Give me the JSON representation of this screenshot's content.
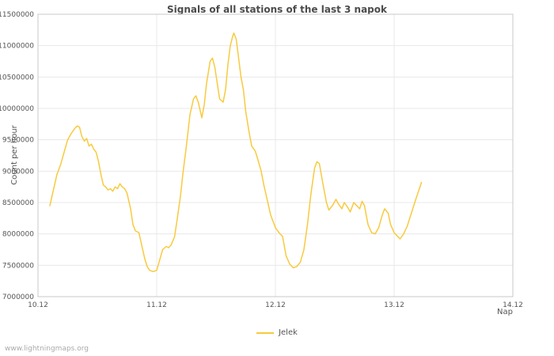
{
  "watermark": "www.lightningmaps.org",
  "chart_data": {
    "type": "line",
    "title": "Signals of all stations of the last 3 napok",
    "xlabel": "Nap",
    "ylabel": "Count per hour",
    "xlim": [
      0,
      4
    ],
    "ylim": [
      7000000,
      11500000
    ],
    "grid": true,
    "legend_position": "bottom-center",
    "colors": {
      "grid": "#e8e8e8",
      "border": "#c8c8c8",
      "tick_text": "#545454",
      "title_text": "#4c4c4c",
      "series_line": "#f8ca3f"
    },
    "x_ticks": [
      {
        "label": "10.12",
        "value": 0
      },
      {
        "label": "11.12",
        "value": 1
      },
      {
        "label": "12.12",
        "value": 2
      },
      {
        "label": "13.12",
        "value": 3
      },
      {
        "label": "14.12",
        "value": 4
      }
    ],
    "y_ticks": [
      {
        "label": "7000000",
        "value": 7000000
      },
      {
        "label": "7500000",
        "value": 7500000
      },
      {
        "label": "8000000",
        "value": 8000000
      },
      {
        "label": "8500000",
        "value": 8500000
      },
      {
        "label": "9000000",
        "value": 9000000
      },
      {
        "label": "9500000",
        "value": 9500000
      },
      {
        "label": "10000000",
        "value": 10000000
      },
      {
        "label": "10500000",
        "value": 10500000
      },
      {
        "label": "11000000",
        "value": 11000000
      },
      {
        "label": "11500000",
        "value": 11500000
      }
    ],
    "series": [
      {
        "name": "Jelek",
        "color": "#f8ca3f",
        "points": [
          [
            0.1,
            8450000
          ],
          [
            0.13,
            8700000
          ],
          [
            0.16,
            8950000
          ],
          [
            0.19,
            9100000
          ],
          [
            0.22,
            9300000
          ],
          [
            0.25,
            9500000
          ],
          [
            0.28,
            9600000
          ],
          [
            0.31,
            9680000
          ],
          [
            0.33,
            9720000
          ],
          [
            0.35,
            9700000
          ],
          [
            0.37,
            9550000
          ],
          [
            0.39,
            9480000
          ],
          [
            0.41,
            9520000
          ],
          [
            0.43,
            9400000
          ],
          [
            0.45,
            9430000
          ],
          [
            0.47,
            9350000
          ],
          [
            0.49,
            9300000
          ],
          [
            0.51,
            9150000
          ],
          [
            0.53,
            8950000
          ],
          [
            0.55,
            8780000
          ],
          [
            0.57,
            8750000
          ],
          [
            0.59,
            8700000
          ],
          [
            0.61,
            8720000
          ],
          [
            0.63,
            8680000
          ],
          [
            0.65,
            8750000
          ],
          [
            0.67,
            8720000
          ],
          [
            0.69,
            8800000
          ],
          [
            0.71,
            8750000
          ],
          [
            0.73,
            8720000
          ],
          [
            0.75,
            8650000
          ],
          [
            0.78,
            8400000
          ],
          [
            0.8,
            8150000
          ],
          [
            0.82,
            8050000
          ],
          [
            0.85,
            8020000
          ],
          [
            0.87,
            7850000
          ],
          [
            0.9,
            7600000
          ],
          [
            0.92,
            7480000
          ],
          [
            0.94,
            7420000
          ],
          [
            0.97,
            7400000
          ],
          [
            1.0,
            7420000
          ],
          [
            1.02,
            7550000
          ],
          [
            1.05,
            7750000
          ],
          [
            1.08,
            7800000
          ],
          [
            1.1,
            7780000
          ],
          [
            1.12,
            7820000
          ],
          [
            1.15,
            7950000
          ],
          [
            1.17,
            8200000
          ],
          [
            1.2,
            8600000
          ],
          [
            1.22,
            8950000
          ],
          [
            1.25,
            9400000
          ],
          [
            1.28,
            9900000
          ],
          [
            1.31,
            10150000
          ],
          [
            1.33,
            10200000
          ],
          [
            1.35,
            10100000
          ],
          [
            1.38,
            9850000
          ],
          [
            1.4,
            10050000
          ],
          [
            1.42,
            10400000
          ],
          [
            1.45,
            10750000
          ],
          [
            1.47,
            10800000
          ],
          [
            1.49,
            10650000
          ],
          [
            1.51,
            10400000
          ],
          [
            1.53,
            10150000
          ],
          [
            1.56,
            10100000
          ],
          [
            1.58,
            10300000
          ],
          [
            1.6,
            10700000
          ],
          [
            1.62,
            11000000
          ],
          [
            1.64,
            11150000
          ],
          [
            1.65,
            11200000
          ],
          [
            1.67,
            11100000
          ],
          [
            1.69,
            10800000
          ],
          [
            1.71,
            10500000
          ],
          [
            1.73,
            10300000
          ],
          [
            1.75,
            9950000
          ],
          [
            1.78,
            9600000
          ],
          [
            1.8,
            9400000
          ],
          [
            1.83,
            9320000
          ],
          [
            1.85,
            9200000
          ],
          [
            1.88,
            9000000
          ],
          [
            1.9,
            8800000
          ],
          [
            1.93,
            8550000
          ],
          [
            1.96,
            8300000
          ],
          [
            2.0,
            8100000
          ],
          [
            2.03,
            8020000
          ],
          [
            2.06,
            7960000
          ],
          [
            2.09,
            7650000
          ],
          [
            2.12,
            7520000
          ],
          [
            2.15,
            7460000
          ],
          [
            2.18,
            7480000
          ],
          [
            2.21,
            7550000
          ],
          [
            2.24,
            7750000
          ],
          [
            2.27,
            8150000
          ],
          [
            2.3,
            8650000
          ],
          [
            2.33,
            9050000
          ],
          [
            2.35,
            9150000
          ],
          [
            2.37,
            9120000
          ],
          [
            2.4,
            8800000
          ],
          [
            2.43,
            8500000
          ],
          [
            2.45,
            8380000
          ],
          [
            2.48,
            8450000
          ],
          [
            2.51,
            8550000
          ],
          [
            2.53,
            8480000
          ],
          [
            2.56,
            8400000
          ],
          [
            2.58,
            8500000
          ],
          [
            2.61,
            8420000
          ],
          [
            2.63,
            8350000
          ],
          [
            2.66,
            8500000
          ],
          [
            2.68,
            8460000
          ],
          [
            2.71,
            8400000
          ],
          [
            2.73,
            8520000
          ],
          [
            2.75,
            8450000
          ],
          [
            2.78,
            8150000
          ],
          [
            2.81,
            8020000
          ],
          [
            2.84,
            8000000
          ],
          [
            2.87,
            8100000
          ],
          [
            2.9,
            8300000
          ],
          [
            2.92,
            8400000
          ],
          [
            2.95,
            8330000
          ],
          [
            2.97,
            8150000
          ],
          [
            3.0,
            8020000
          ],
          [
            3.03,
            7960000
          ],
          [
            3.05,
            7920000
          ],
          [
            3.08,
            8000000
          ],
          [
            3.11,
            8120000
          ],
          [
            3.14,
            8300000
          ],
          [
            3.17,
            8480000
          ],
          [
            3.2,
            8650000
          ],
          [
            3.23,
            8820000
          ]
        ]
      }
    ]
  }
}
